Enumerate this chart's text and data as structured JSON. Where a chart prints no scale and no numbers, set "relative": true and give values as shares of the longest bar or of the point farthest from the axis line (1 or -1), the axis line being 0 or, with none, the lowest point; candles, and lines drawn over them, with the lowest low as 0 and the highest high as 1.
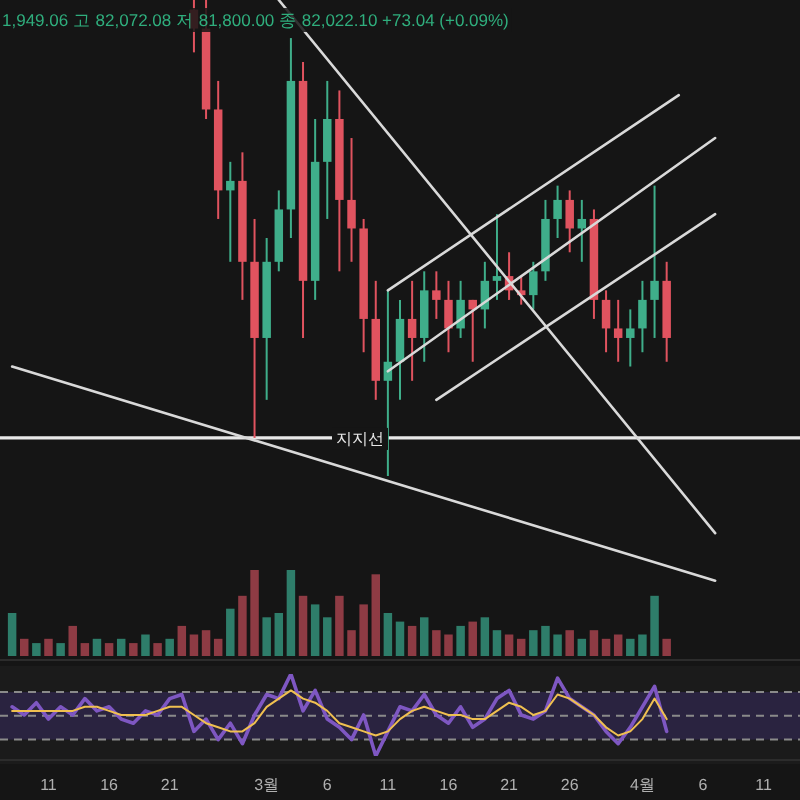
{
  "chart_data": [
    {
      "type": "candlestick",
      "relative": true,
      "tick_labels": false,
      "xlim": [
        "--02-07",
        "--04-14"
      ],
      "annotations": [
        "1,949.06 고 82,072.08 저 81,800.00 종 82,022.10 +73.04 (+0.09%)"
      ],
      "x": [
        "--02-23",
        "--02-24",
        "--02-25",
        "--02-26",
        "--02-27",
        "--02-28",
        "--03-01",
        "--03-02",
        "--03-03",
        "--03-04",
        "--03-05",
        "--03-06",
        "--03-07",
        "--03-08",
        "--03-09",
        "--03-10",
        "--03-11",
        "--03-12",
        "--03-13",
        "--03-14",
        "--03-15",
        "--03-16",
        "--03-17",
        "--03-18",
        "--03-19",
        "--03-20",
        "--03-21",
        "--03-22",
        "--03-23",
        "--03-24",
        "--03-25",
        "--03-26",
        "--03-27",
        "--03-28",
        "--03-29",
        "--03-30",
        "--03-31",
        "--04-01",
        "--04-02",
        "--04-03"
      ],
      "ohlc": [
        [
          0.98,
          1.0,
          0.89,
          0.94
        ],
        [
          0.94,
          1.0,
          0.75,
          0.77
        ],
        [
          0.77,
          0.83,
          0.54,
          0.6
        ],
        [
          0.6,
          0.66,
          0.45,
          0.62
        ],
        [
          0.62,
          0.68,
          0.37,
          0.45
        ],
        [
          0.45,
          0.54,
          0.08,
          0.29
        ],
        [
          0.29,
          0.5,
          0.16,
          0.45
        ],
        [
          0.45,
          0.6,
          0.43,
          0.56
        ],
        [
          0.56,
          0.92,
          0.5,
          0.83
        ],
        [
          0.83,
          0.87,
          0.29,
          0.41
        ],
        [
          0.41,
          0.75,
          0.37,
          0.66
        ],
        [
          0.66,
          0.83,
          0.54,
          0.75
        ],
        [
          0.75,
          0.81,
          0.43,
          0.58
        ],
        [
          0.58,
          0.71,
          0.45,
          0.52
        ],
        [
          0.52,
          0.54,
          0.26,
          0.33
        ],
        [
          0.33,
          0.41,
          0.16,
          0.2
        ],
        [
          0.2,
          0.39,
          0.0,
          0.24
        ],
        [
          0.24,
          0.37,
          0.16,
          0.33
        ],
        [
          0.33,
          0.41,
          0.2,
          0.29
        ],
        [
          0.29,
          0.43,
          0.24,
          0.39
        ],
        [
          0.39,
          0.43,
          0.33,
          0.37
        ],
        [
          0.37,
          0.41,
          0.26,
          0.31
        ],
        [
          0.31,
          0.41,
          0.29,
          0.37
        ],
        [
          0.37,
          0.37,
          0.24,
          0.35
        ],
        [
          0.35,
          0.45,
          0.31,
          0.41
        ],
        [
          0.41,
          0.55,
          0.37,
          0.42
        ],
        [
          0.42,
          0.47,
          0.37,
          0.39
        ],
        [
          0.39,
          0.42,
          0.36,
          0.38
        ],
        [
          0.38,
          0.45,
          0.35,
          0.43
        ],
        [
          0.43,
          0.58,
          0.41,
          0.54
        ],
        [
          0.54,
          0.61,
          0.5,
          0.58
        ],
        [
          0.58,
          0.6,
          0.47,
          0.52
        ],
        [
          0.52,
          0.58,
          0.45,
          0.54
        ],
        [
          0.54,
          0.56,
          0.33,
          0.37
        ],
        [
          0.37,
          0.39,
          0.26,
          0.31
        ],
        [
          0.31,
          0.37,
          0.24,
          0.29
        ],
        [
          0.29,
          0.35,
          0.23,
          0.31
        ],
        [
          0.31,
          0.41,
          0.26,
          0.37
        ],
        [
          0.37,
          0.61,
          0.29,
          0.41
        ],
        [
          0.41,
          0.45,
          0.24,
          0.29
        ]
      ],
      "colors": [
        "#e0535f",
        "#e0535f",
        "#e0535f",
        "#3fae8a",
        "#e0535f",
        "#e0535f",
        "#3fae8a",
        "#3fae8a",
        "#3fae8a",
        "#e0535f",
        "#3fae8a",
        "#3fae8a",
        "#e0535f",
        "#e0535f",
        "#e0535f",
        "#e0535f",
        "#3fae8a",
        "#3fae8a",
        "#e0535f",
        "#3fae8a",
        "#e0535f",
        "#e0535f",
        "#3fae8a",
        "#e0535f",
        "#3fae8a",
        "#3fae8a",
        "#e0535f",
        "#e0535f",
        "#3fae8a",
        "#3fae8a",
        "#3fae8a",
        "#e0535f",
        "#3fae8a",
        "#e0535f",
        "#e0535f",
        "#e0535f",
        "#3fae8a",
        "#3fae8a",
        "#3fae8a",
        "#e0535f"
      ],
      "series": [
        {
          "type": "line",
          "color": "#d9d9d9",
          "x": [
            "--03-02",
            "--04-07"
          ],
          "values": [
            1.0,
            -0.12
          ]
        },
        {
          "type": "line",
          "color": "#d9d9d9",
          "x": [
            "--02-08",
            "--04-07"
          ],
          "values": [
            0.23,
            -0.22
          ]
        },
        {
          "type": "line",
          "color": "#d9d9d9",
          "x": [
            "--03-11",
            "--04-04"
          ],
          "values": [
            0.39,
            0.8
          ]
        },
        {
          "type": "line",
          "color": "#d9d9d9",
          "x": [
            "--03-11",
            "--04-07"
          ],
          "values": [
            0.22,
            0.71
          ]
        },
        {
          "type": "line",
          "color": "#d9d9d9",
          "x": [
            "--03-15",
            "--04-07"
          ],
          "values": [
            0.16,
            0.55
          ]
        }
      ],
      "ref_lines": [
        {
          "axis": "y",
          "value": 0.08,
          "label": "지지선",
          "color": "#e8e8e8"
        }
      ]
    },
    {
      "type": "bar",
      "relative": true,
      "tick_labels": false,
      "xlim": [
        "--02-07",
        "--04-14"
      ],
      "x": [
        "--02-08",
        "--02-09",
        "--02-10",
        "--02-11",
        "--02-12",
        "--02-13",
        "--02-14",
        "--02-15",
        "--02-16",
        "--02-17",
        "--02-18",
        "--02-19",
        "--02-20",
        "--02-21",
        "--02-22",
        "--02-23",
        "--02-24",
        "--02-25",
        "--02-26",
        "--02-27",
        "--02-28",
        "--03-01",
        "--03-02",
        "--03-03",
        "--03-04",
        "--03-05",
        "--03-06",
        "--03-07",
        "--03-08",
        "--03-09",
        "--03-10",
        "--03-11",
        "--03-12",
        "--03-13",
        "--03-14",
        "--03-15",
        "--03-16",
        "--03-17",
        "--03-18",
        "--03-19",
        "--03-20",
        "--03-21",
        "--03-22",
        "--03-23",
        "--03-24",
        "--03-25",
        "--03-26",
        "--03-27",
        "--03-28",
        "--03-29",
        "--03-30",
        "--03-31",
        "--04-01",
        "--04-02",
        "--04-03"
      ],
      "values": [
        0.5,
        0.2,
        0.15,
        0.2,
        0.15,
        0.35,
        0.15,
        0.2,
        0.15,
        0.2,
        0.15,
        0.25,
        0.15,
        0.2,
        0.35,
        0.25,
        0.3,
        0.2,
        0.55,
        0.7,
        1.0,
        0.45,
        0.5,
        1.0,
        0.7,
        0.6,
        0.45,
        0.7,
        0.3,
        0.6,
        0.95,
        0.5,
        0.4,
        0.35,
        0.45,
        0.3,
        0.25,
        0.35,
        0.4,
        0.45,
        0.3,
        0.25,
        0.2,
        0.3,
        0.35,
        0.25,
        0.3,
        0.2,
        0.3,
        0.2,
        0.25,
        0.2,
        0.25,
        0.7,
        0.2
      ],
      "colors": [
        "#2e7d6a",
        "#8e3b44",
        "#2e7d6a",
        "#8e3b44",
        "#2e7d6a",
        "#8e3b44",
        "#8e3b44",
        "#2e7d6a",
        "#8e3b44",
        "#2e7d6a",
        "#8e3b44",
        "#2e7d6a",
        "#8e3b44",
        "#2e7d6a",
        "#8e3b44",
        "#8e3b44",
        "#8e3b44",
        "#8e3b44",
        "#2e7d6a",
        "#8e3b44",
        "#8e3b44",
        "#2e7d6a",
        "#2e7d6a",
        "#2e7d6a",
        "#8e3b44",
        "#2e7d6a",
        "#2e7d6a",
        "#8e3b44",
        "#8e3b44",
        "#8e3b44",
        "#8e3b44",
        "#2e7d6a",
        "#2e7d6a",
        "#8e3b44",
        "#2e7d6a",
        "#8e3b44",
        "#8e3b44",
        "#2e7d6a",
        "#8e3b44",
        "#2e7d6a",
        "#2e7d6a",
        "#8e3b44",
        "#8e3b44",
        "#2e7d6a",
        "#2e7d6a",
        "#2e7d6a",
        "#8e3b44",
        "#2e7d6a",
        "#8e3b44",
        "#8e3b44",
        "#8e3b44",
        "#2e7d6a",
        "#2e7d6a",
        "#2e7d6a",
        "#8e3b44"
      ]
    },
    {
      "type": "line",
      "relative": true,
      "tick_labels": "x",
      "xlim": [
        "--02-07",
        "--04-14"
      ],
      "xticks": [
        {
          "value": "--02-11",
          "label": "11"
        },
        {
          "value": "--02-16",
          "label": "16"
        },
        {
          "value": "--02-21",
          "label": "21"
        },
        {
          "value": "--03-01",
          "label": "3월"
        },
        {
          "value": "--03-06",
          "label": "6"
        },
        {
          "value": "--03-11",
          "label": "11"
        },
        {
          "value": "--03-16",
          "label": "16"
        },
        {
          "value": "--03-21",
          "label": "21"
        },
        {
          "value": "--03-26",
          "label": "26"
        },
        {
          "value": "--04-01",
          "label": "4월"
        },
        {
          "value": "--04-06",
          "label": "6"
        },
        {
          "value": "--04-11",
          "label": "11"
        }
      ],
      "x": [
        "--02-08",
        "--02-09",
        "--02-10",
        "--02-11",
        "--02-12",
        "--02-13",
        "--02-14",
        "--02-15",
        "--02-16",
        "--02-17",
        "--02-18",
        "--02-19",
        "--02-20",
        "--02-21",
        "--02-22",
        "--02-23",
        "--02-24",
        "--02-25",
        "--02-26",
        "--02-27",
        "--02-28",
        "--03-01",
        "--03-02",
        "--03-03",
        "--03-04",
        "--03-05",
        "--03-06",
        "--03-07",
        "--03-08",
        "--03-09",
        "--03-10",
        "--03-11",
        "--03-12",
        "--03-13",
        "--03-14",
        "--03-15",
        "--03-16",
        "--03-17",
        "--03-18",
        "--03-19",
        "--03-20",
        "--03-21",
        "--03-22",
        "--03-23",
        "--03-24",
        "--03-25",
        "--03-26",
        "--03-27",
        "--03-28",
        "--03-29",
        "--03-30",
        "--03-31",
        "--04-01",
        "--04-02",
        "--04-03"
      ],
      "series": [
        {
          "color": "#7e57c2",
          "values": [
            0.6,
            0.5,
            0.65,
            0.45,
            0.6,
            0.5,
            0.7,
            0.55,
            0.6,
            0.45,
            0.4,
            0.55,
            0.5,
            0.7,
            0.75,
            0.3,
            0.45,
            0.2,
            0.4,
            0.15,
            0.5,
            0.75,
            0.7,
            1.0,
            0.55,
            0.8,
            0.45,
            0.35,
            0.2,
            0.5,
            0.0,
            0.3,
            0.6,
            0.55,
            0.75,
            0.5,
            0.4,
            0.6,
            0.35,
            0.45,
            0.7,
            0.8,
            0.5,
            0.45,
            0.55,
            0.95,
            0.7,
            0.6,
            0.5,
            0.3,
            0.15,
            0.35,
            0.6,
            0.85,
            0.3
          ]
        },
        {
          "color": "#f0c050",
          "values": [
            0.55,
            0.55,
            0.55,
            0.55,
            0.55,
            0.55,
            0.6,
            0.6,
            0.55,
            0.5,
            0.5,
            0.5,
            0.55,
            0.6,
            0.6,
            0.5,
            0.4,
            0.35,
            0.3,
            0.3,
            0.4,
            0.6,
            0.7,
            0.8,
            0.7,
            0.65,
            0.55,
            0.4,
            0.35,
            0.3,
            0.25,
            0.3,
            0.45,
            0.55,
            0.6,
            0.55,
            0.5,
            0.5,
            0.45,
            0.45,
            0.55,
            0.65,
            0.6,
            0.5,
            0.55,
            0.75,
            0.7,
            0.6,
            0.5,
            0.35,
            0.25,
            0.3,
            0.45,
            0.7,
            0.45
          ]
        }
      ],
      "bands": [
        {
          "axis": "y",
          "from": 0.2,
          "to": 0.78,
          "color": "#2a2340"
        }
      ],
      "ref_lines": [
        {
          "axis": "y",
          "value": 0.78,
          "line_style": "dashed",
          "color": "#8a8a8a"
        },
        {
          "axis": "y",
          "value": 0.49,
          "line_style": "dashed",
          "color": "#8a8a8a"
        },
        {
          "axis": "y",
          "value": 0.2,
          "line_style": "dashed",
          "color": "#8a8a8a"
        }
      ]
    }
  ]
}
